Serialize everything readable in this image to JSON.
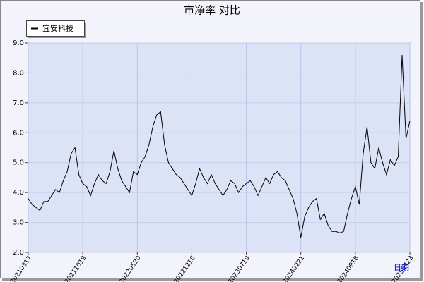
{
  "chart_data": {
    "type": "line",
    "title": "市净率  对比",
    "x_label": "日期",
    "categories": [
      "20210317",
      null,
      null,
      null,
      null,
      null,
      null,
      null,
      null,
      null,
      null,
      null,
      null,
      null,
      "20211019",
      null,
      null,
      null,
      null,
      null,
      null,
      null,
      null,
      null,
      null,
      null,
      null,
      null,
      "20220520",
      null,
      null,
      null,
      null,
      null,
      null,
      null,
      null,
      null,
      null,
      null,
      null,
      null,
      "20221216",
      null,
      null,
      null,
      null,
      null,
      null,
      null,
      null,
      null,
      null,
      null,
      null,
      null,
      "20230719",
      null,
      null,
      null,
      null,
      null,
      null,
      null,
      null,
      null,
      null,
      null,
      null,
      null,
      "20240221",
      null,
      null,
      null,
      null,
      null,
      null,
      null,
      null,
      null,
      null,
      null,
      null,
      null,
      "20240918",
      null,
      null,
      null,
      null,
      null,
      null,
      null,
      null,
      null,
      null,
      null,
      null,
      null,
      "20250423"
    ],
    "series": [
      {
        "name": "宜安科技",
        "color": "#000000",
        "values": [
          3.8,
          3.6,
          3.5,
          3.4,
          3.7,
          3.7,
          3.9,
          4.1,
          4.0,
          4.4,
          4.7,
          5.3,
          5.5,
          4.6,
          4.3,
          4.2,
          3.9,
          4.3,
          4.6,
          4.4,
          4.3,
          4.7,
          5.4,
          4.8,
          4.4,
          4.2,
          4.0,
          4.7,
          4.6,
          5.0,
          5.2,
          5.6,
          6.2,
          6.6,
          6.7,
          5.6,
          5.0,
          4.8,
          4.6,
          4.5,
          4.3,
          4.1,
          3.9,
          4.3,
          4.8,
          4.5,
          4.3,
          4.6,
          4.3,
          4.1,
          3.9,
          4.1,
          4.4,
          4.3,
          4.0,
          4.2,
          4.3,
          4.4,
          4.2,
          3.9,
          4.2,
          4.5,
          4.3,
          4.6,
          4.7,
          4.5,
          4.4,
          4.1,
          3.8,
          3.3,
          2.5,
          3.2,
          3.5,
          3.7,
          3.8,
          3.1,
          3.3,
          2.9,
          2.7,
          2.7,
          2.65,
          2.7,
          3.3,
          3.8,
          4.2,
          3.6,
          5.3,
          6.2,
          5.0,
          4.8,
          5.5,
          5.0,
          4.6,
          5.1,
          4.9,
          5.2,
          8.6,
          5.8,
          6.4
        ]
      }
    ],
    "ylim": [
      2,
      9
    ],
    "yticks": [
      {
        "value": 2,
        "label": "2.0"
      },
      {
        "value": 3,
        "label": "3.0"
      },
      {
        "value": 4,
        "label": "4.0"
      },
      {
        "value": 5,
        "label": "5.0"
      },
      {
        "value": 6,
        "label": "6.0"
      },
      {
        "value": 7,
        "label": "7.0"
      },
      {
        "value": 8,
        "label": "8.0"
      },
      {
        "value": 9,
        "label": "9.0"
      }
    ],
    "grid": true,
    "legend": "top-left"
  }
}
